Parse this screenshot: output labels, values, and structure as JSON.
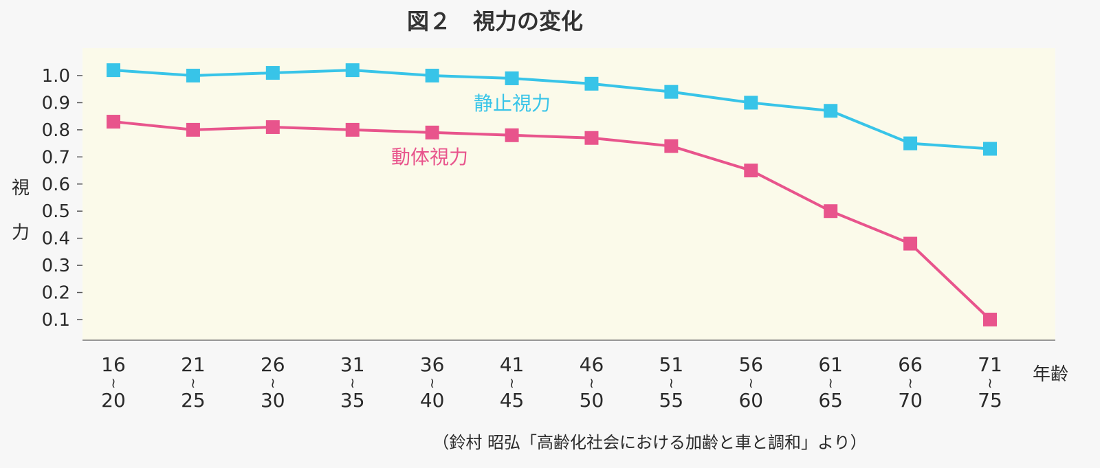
{
  "chart_data": {
    "type": "line",
    "title": "図２　視力の変化",
    "ylabel_chars": [
      "視",
      "力"
    ],
    "xlabel": "年齢",
    "ylim": [
      0.0,
      1.05
    ],
    "yticks": [
      "1.0",
      "0.9",
      "0.8",
      "0.7",
      "0.6",
      "0.5",
      "0.4",
      "0.3",
      "0.2",
      "0.1"
    ],
    "ytick_values": [
      1.0,
      0.9,
      0.8,
      0.7,
      0.6,
      0.5,
      0.4,
      0.3,
      0.2,
      0.1
    ],
    "categories": [
      {
        "from": "16",
        "tilde": "≀",
        "to": "20"
      },
      {
        "from": "21",
        "tilde": "≀",
        "to": "25"
      },
      {
        "from": "26",
        "tilde": "≀",
        "to": "30"
      },
      {
        "from": "31",
        "tilde": "≀",
        "to": "35"
      },
      {
        "from": "36",
        "tilde": "≀",
        "to": "40"
      },
      {
        "from": "41",
        "tilde": "≀",
        "to": "45"
      },
      {
        "from": "46",
        "tilde": "≀",
        "to": "50"
      },
      {
        "from": "51",
        "tilde": "≀",
        "to": "55"
      },
      {
        "from": "56",
        "tilde": "≀",
        "to": "60"
      },
      {
        "from": "61",
        "tilde": "≀",
        "to": "65"
      },
      {
        "from": "66",
        "tilde": "≀",
        "to": "70"
      },
      {
        "from": "71",
        "tilde": "≀",
        "to": "75"
      }
    ],
    "series": [
      {
        "name": "静止視力",
        "key": "static",
        "color": "#38c4e8",
        "values": [
          1.02,
          1.0,
          1.01,
          1.02,
          1.0,
          0.99,
          0.97,
          0.94,
          0.9,
          0.87,
          0.75,
          0.73
        ]
      },
      {
        "name": "動体視力",
        "key": "dynamic",
        "color": "#e8548c",
        "values": [
          0.83,
          0.8,
          0.81,
          0.8,
          0.79,
          0.78,
          0.77,
          0.74,
          0.65,
          0.5,
          0.38,
          0.1
        ]
      }
    ],
    "grid": false,
    "source": "（鈴村 昭弘「高齢化社会における加齢と車と調和」より）"
  },
  "colors": {
    "plot_background": "#fbfaea",
    "page_background": "#f7f7f7",
    "axis": "#777777"
  }
}
